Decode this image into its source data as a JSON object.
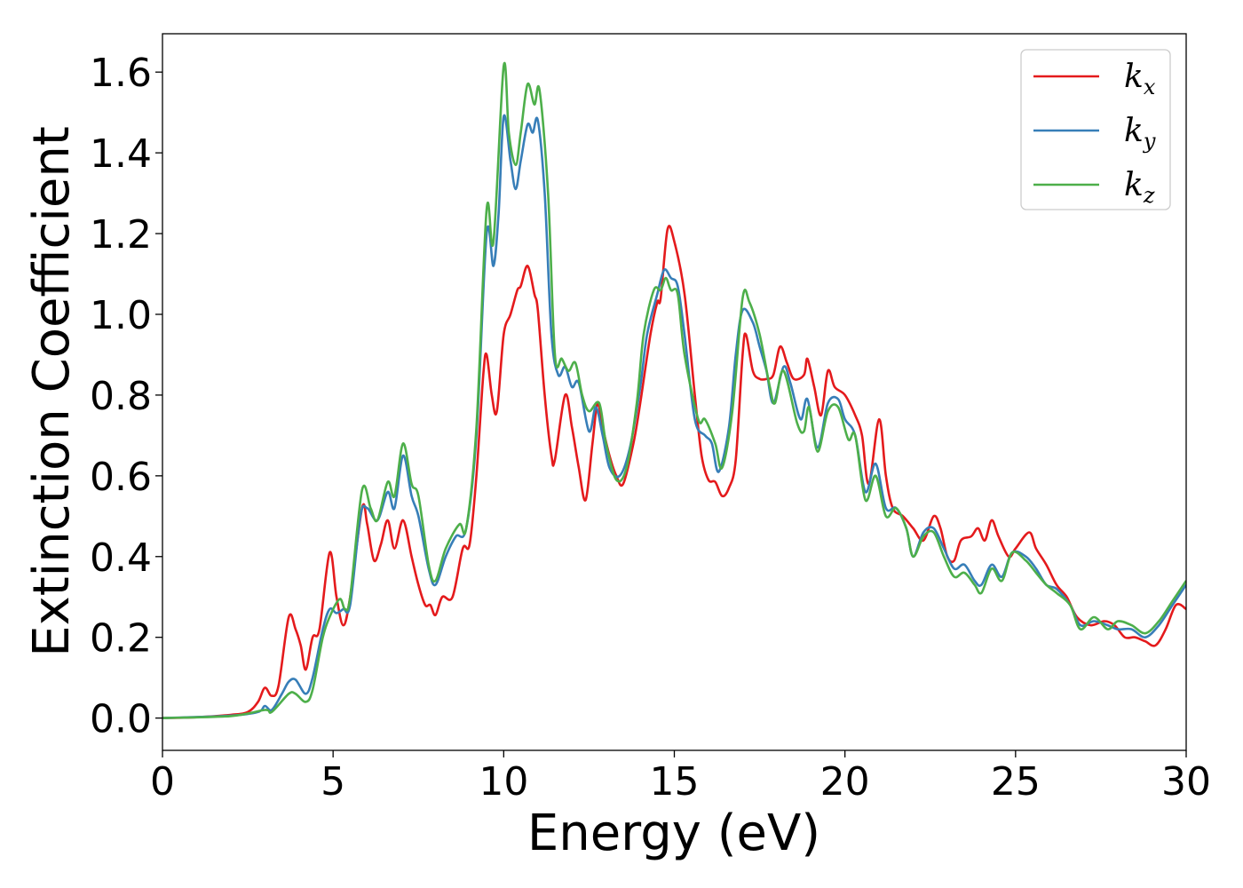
{
  "chart_data": {
    "type": "line",
    "title": "",
    "xlabel": "Energy (eV)",
    "ylabel": "Extinction Coefficient",
    "xlim": [
      0,
      30
    ],
    "ylim": [
      -0.08,
      1.695
    ],
    "xticks": [
      0,
      5,
      10,
      15,
      20,
      25,
      30
    ],
    "xtick_labels": [
      "0",
      "5",
      "10",
      "15",
      "20",
      "25",
      "30"
    ],
    "yticks": [
      0.0,
      0.2,
      0.4,
      0.6,
      0.8,
      1.0,
      1.2,
      1.4,
      1.6
    ],
    "ytick_labels": [
      "0.0",
      "0.2",
      "0.4",
      "0.6",
      "0.8",
      "1.0",
      "1.2",
      "1.4",
      "1.6"
    ],
    "grid": false,
    "legend_position": "top-right",
    "series": [
      {
        "name": "k_x",
        "label_main": "k",
        "label_sub": "x",
        "color": "#e41a1c",
        "x": [
          0,
          1,
          2,
          2.5,
          2.8,
          3.0,
          3.2,
          3.4,
          3.7,
          3.9,
          4.05,
          4.2,
          4.4,
          4.6,
          4.9,
          5.1,
          5.3,
          5.5,
          5.85,
          6.0,
          6.2,
          6.4,
          6.6,
          6.8,
          7.05,
          7.3,
          7.5,
          7.7,
          7.85,
          8.0,
          8.2,
          8.5,
          8.8,
          9.0,
          9.2,
          9.4,
          9.5,
          9.65,
          9.8,
          10.0,
          10.2,
          10.4,
          10.5,
          10.7,
          10.9,
          11.0,
          11.2,
          11.4,
          11.5,
          11.8,
          12.0,
          12.2,
          12.4,
          12.6,
          12.75,
          12.9,
          13.1,
          13.3,
          13.5,
          13.8,
          14.0,
          14.3,
          14.5,
          14.6,
          14.8,
          15.0,
          15.3,
          15.6,
          15.8,
          16.0,
          16.2,
          16.4,
          16.6,
          16.8,
          17.0,
          17.1,
          17.3,
          17.5,
          17.7,
          17.9,
          18.1,
          18.3,
          18.5,
          18.8,
          18.9,
          19.1,
          19.3,
          19.5,
          19.7,
          20.0,
          20.3,
          20.5,
          20.7,
          21.0,
          21.2,
          21.4,
          21.7,
          22.0,
          22.3,
          22.6,
          22.8,
          23.0,
          23.2,
          23.4,
          23.7,
          23.9,
          24.1,
          24.3,
          24.5,
          24.8,
          25.0,
          25.4,
          25.6,
          25.9,
          26.2,
          26.5,
          26.8,
          27.2,
          27.6,
          27.9,
          28.2,
          28.5,
          28.8,
          29.1,
          29.4,
          29.7,
          30
        ],
        "y": [
          0,
          0.002,
          0.008,
          0.015,
          0.04,
          0.075,
          0.055,
          0.08,
          0.25,
          0.22,
          0.18,
          0.12,
          0.2,
          0.22,
          0.41,
          0.3,
          0.23,
          0.3,
          0.52,
          0.48,
          0.39,
          0.43,
          0.49,
          0.42,
          0.49,
          0.4,
          0.33,
          0.28,
          0.28,
          0.255,
          0.3,
          0.3,
          0.42,
          0.43,
          0.6,
          0.85,
          0.9,
          0.8,
          0.76,
          0.95,
          1.0,
          1.06,
          1.07,
          1.12,
          1.05,
          1.01,
          0.8,
          0.65,
          0.64,
          0.8,
          0.72,
          0.62,
          0.54,
          0.68,
          0.78,
          0.72,
          0.65,
          0.6,
          0.58,
          0.68,
          0.78,
          0.95,
          1.03,
          1.04,
          1.21,
          1.18,
          1.05,
          0.8,
          0.65,
          0.59,
          0.585,
          0.55,
          0.57,
          0.64,
          0.9,
          0.95,
          0.86,
          0.84,
          0.84,
          0.85,
          0.92,
          0.88,
          0.84,
          0.85,
          0.89,
          0.82,
          0.75,
          0.86,
          0.82,
          0.8,
          0.75,
          0.7,
          0.58,
          0.74,
          0.6,
          0.52,
          0.5,
          0.47,
          0.44,
          0.5,
          0.47,
          0.4,
          0.39,
          0.44,
          0.45,
          0.47,
          0.44,
          0.49,
          0.45,
          0.4,
          0.42,
          0.46,
          0.42,
          0.38,
          0.33,
          0.3,
          0.25,
          0.23,
          0.24,
          0.23,
          0.2,
          0.2,
          0.19,
          0.18,
          0.22,
          0.28,
          0.27
        ]
      },
      {
        "name": "k_y",
        "label_main": "k",
        "label_sub": "y",
        "color": "#377eb8",
        "x": [
          0,
          2,
          2.8,
          3.0,
          3.2,
          3.5,
          3.7,
          3.9,
          4.2,
          4.4,
          4.7,
          4.9,
          5.1,
          5.3,
          5.5,
          5.8,
          6.0,
          6.3,
          6.6,
          6.8,
          7.05,
          7.3,
          7.5,
          7.8,
          8.0,
          8.3,
          8.6,
          8.9,
          9.2,
          9.5,
          9.7,
          9.85,
          10.0,
          10.2,
          10.35,
          10.5,
          10.7,
          10.85,
          11.0,
          11.2,
          11.4,
          11.6,
          11.8,
          12.0,
          12.2,
          12.5,
          12.7,
          12.9,
          13.1,
          13.4,
          13.7,
          14.0,
          14.2,
          14.5,
          14.7,
          14.9,
          15.1,
          15.3,
          15.6,
          15.9,
          16.1,
          16.3,
          16.6,
          16.8,
          17.0,
          17.3,
          17.5,
          17.7,
          17.9,
          18.2,
          18.4,
          18.7,
          18.9,
          19.2,
          19.5,
          19.8,
          20.0,
          20.3,
          20.6,
          20.9,
          21.2,
          21.5,
          21.8,
          22.0,
          22.3,
          22.6,
          22.9,
          23.2,
          23.5,
          23.8,
          24.0,
          24.3,
          24.6,
          24.9,
          25.3,
          25.6,
          25.9,
          26.2,
          26.6,
          26.9,
          27.3,
          27.7,
          28.0,
          28.4,
          28.8,
          29.2,
          29.6,
          30
        ],
        "y": [
          0,
          0.006,
          0.015,
          0.03,
          0.02,
          0.06,
          0.09,
          0.095,
          0.06,
          0.1,
          0.22,
          0.27,
          0.26,
          0.27,
          0.28,
          0.5,
          0.52,
          0.49,
          0.56,
          0.52,
          0.65,
          0.55,
          0.5,
          0.37,
          0.33,
          0.4,
          0.45,
          0.47,
          0.7,
          1.2,
          1.12,
          1.25,
          1.49,
          1.38,
          1.31,
          1.38,
          1.47,
          1.45,
          1.48,
          1.3,
          0.95,
          0.85,
          0.87,
          0.82,
          0.83,
          0.71,
          0.77,
          0.7,
          0.62,
          0.6,
          0.67,
          0.82,
          0.95,
          1.05,
          1.11,
          1.09,
          1.07,
          0.95,
          0.74,
          0.7,
          0.68,
          0.61,
          0.72,
          0.9,
          1.01,
          0.98,
          0.92,
          0.86,
          0.78,
          0.87,
          0.83,
          0.74,
          0.79,
          0.67,
          0.78,
          0.79,
          0.74,
          0.7,
          0.56,
          0.63,
          0.52,
          0.52,
          0.47,
          0.4,
          0.46,
          0.47,
          0.42,
          0.37,
          0.38,
          0.34,
          0.33,
          0.38,
          0.35,
          0.41,
          0.4,
          0.37,
          0.33,
          0.32,
          0.28,
          0.23,
          0.24,
          0.23,
          0.22,
          0.22,
          0.2,
          0.23,
          0.28,
          0.33
        ]
      },
      {
        "name": "k_z",
        "label_main": "k",
        "label_sub": "z",
        "color": "#4daf4a",
        "x": [
          0,
          2,
          3.0,
          3.2,
          3.7,
          3.9,
          4.2,
          4.4,
          4.7,
          4.95,
          5.2,
          5.35,
          5.5,
          5.85,
          6.1,
          6.3,
          6.6,
          6.8,
          7.05,
          7.3,
          7.5,
          7.8,
          8.0,
          8.3,
          8.7,
          8.9,
          9.2,
          9.5,
          9.7,
          10.0,
          10.15,
          10.35,
          10.5,
          10.7,
          10.9,
          11.05,
          11.3,
          11.5,
          11.7,
          11.9,
          12.1,
          12.3,
          12.5,
          12.8,
          13.0,
          13.3,
          13.6,
          13.9,
          14.1,
          14.4,
          14.6,
          14.75,
          14.9,
          15.1,
          15.3,
          15.7,
          15.9,
          16.2,
          16.4,
          16.7,
          17.0,
          17.2,
          17.5,
          17.8,
          17.95,
          18.2,
          18.6,
          18.8,
          18.95,
          19.2,
          19.5,
          19.8,
          20.1,
          20.3,
          20.6,
          20.9,
          21.2,
          21.5,
          21.8,
          22.0,
          22.3,
          22.6,
          22.9,
          23.2,
          23.5,
          23.8,
          24.0,
          24.3,
          24.6,
          24.9,
          25.3,
          25.6,
          25.9,
          26.2,
          26.6,
          26.9,
          27.3,
          27.7,
          28.0,
          28.4,
          28.8,
          29.2,
          29.6,
          30
        ],
        "y": [
          0,
          0.005,
          0.02,
          0.015,
          0.06,
          0.06,
          0.04,
          0.07,
          0.2,
          0.26,
          0.295,
          0.27,
          0.3,
          0.565,
          0.52,
          0.49,
          0.585,
          0.55,
          0.68,
          0.58,
          0.55,
          0.38,
          0.34,
          0.42,
          0.48,
          0.47,
          0.72,
          1.26,
          1.18,
          1.615,
          1.45,
          1.37,
          1.45,
          1.57,
          1.52,
          1.555,
          1.3,
          0.9,
          0.89,
          0.86,
          0.88,
          0.8,
          0.76,
          0.78,
          0.68,
          0.59,
          0.62,
          0.78,
          0.95,
          1.06,
          1.06,
          1.09,
          1.06,
          1.05,
          0.9,
          0.74,
          0.74,
          0.68,
          0.62,
          0.76,
          1.04,
          1.03,
          0.95,
          0.82,
          0.78,
          0.86,
          0.73,
          0.71,
          0.77,
          0.66,
          0.76,
          0.77,
          0.69,
          0.7,
          0.54,
          0.6,
          0.5,
          0.52,
          0.47,
          0.4,
          0.45,
          0.46,
          0.4,
          0.35,
          0.36,
          0.33,
          0.31,
          0.37,
          0.34,
          0.41,
          0.39,
          0.36,
          0.33,
          0.31,
          0.28,
          0.22,
          0.25,
          0.22,
          0.24,
          0.23,
          0.21,
          0.24,
          0.29,
          0.34
        ]
      }
    ]
  }
}
